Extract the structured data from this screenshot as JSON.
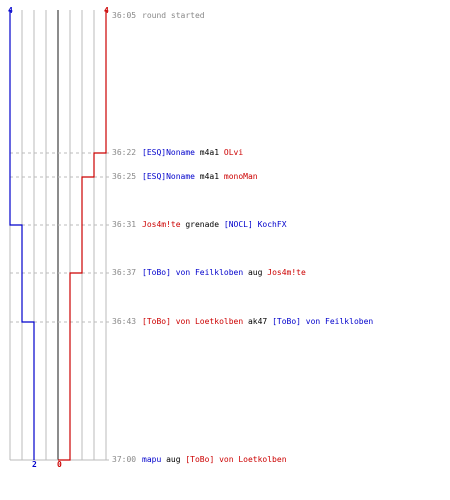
{
  "colors": {
    "team_blue": "#0000cc",
    "team_red": "#cc0000",
    "grid": "#bbbbbb",
    "center": "#666666",
    "time": "#888888"
  },
  "score_labels": {
    "blue_top": "4",
    "red_top": "4",
    "blue_bottom": "2",
    "red_bottom": "0"
  },
  "events": [
    {
      "time": "36:05",
      "parts": [
        {
          "text": "round started",
          "color": "gray"
        }
      ]
    },
    {
      "time": "36:22",
      "parts": [
        {
          "text": "[ESQ]Noname",
          "color": "blue"
        },
        {
          "text": " m4a1 ",
          "color": "black"
        },
        {
          "text": "OLvi",
          "color": "red"
        }
      ]
    },
    {
      "time": "36:25",
      "parts": [
        {
          "text": "[ESQ]Noname",
          "color": "blue"
        },
        {
          "text": " m4a1 ",
          "color": "black"
        },
        {
          "text": "monoMan",
          "color": "red"
        }
      ]
    },
    {
      "time": "36:31",
      "parts": [
        {
          "text": "Jos4m!te",
          "color": "red"
        },
        {
          "text": " grenade ",
          "color": "black"
        },
        {
          "text": "[NOCL] KochFX",
          "color": "blue"
        }
      ]
    },
    {
      "time": "36:37",
      "parts": [
        {
          "text": "[ToBo] von Feilkloben",
          "color": "blue"
        },
        {
          "text": " aug ",
          "color": "black"
        },
        {
          "text": "Jos4m!te",
          "color": "red"
        }
      ]
    },
    {
      "time": "36:43",
      "parts": [
        {
          "text": "[ToBo] von Loetkolben",
          "color": "red"
        },
        {
          "text": " ak47 ",
          "color": "black"
        },
        {
          "text": "[ToBo] von Feilkloben",
          "color": "blue"
        }
      ]
    },
    {
      "time": "37:00",
      "parts": [
        {
          "text": "mapu",
          "color": "blue"
        },
        {
          "text": " aug ",
          "color": "black"
        },
        {
          "text": "[ToBo] von Loetkolben",
          "color": "red"
        }
      ]
    }
  ],
  "alive_steps": {
    "blue": [
      4,
      4,
      4,
      3,
      3,
      2,
      2
    ],
    "red": [
      4,
      3,
      2,
      2,
      1,
      1,
      0
    ]
  }
}
